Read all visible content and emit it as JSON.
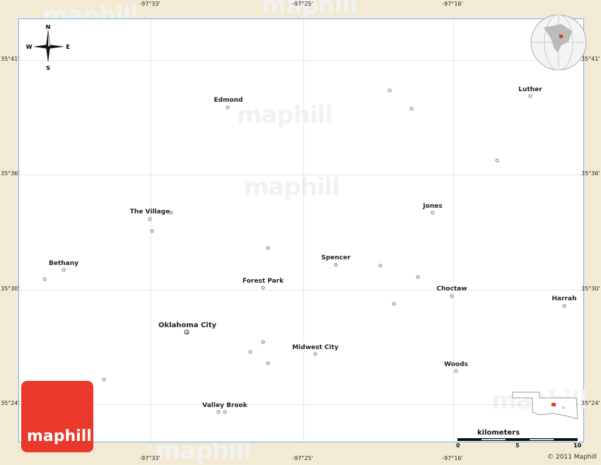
{
  "watermark": "maphill",
  "coordinates": {
    "longitudes": [
      "-97°33'",
      "-97°25'",
      "-97°16'"
    ],
    "latitudes": [
      "35°41'",
      "35°36'",
      "35°30'",
      "35°24'"
    ]
  },
  "compass": {
    "n": "N",
    "s": "S",
    "e": "E",
    "w": "W"
  },
  "cities": [
    {
      "name": "Edmond"
    },
    {
      "name": "Luther"
    },
    {
      "name": "The Village"
    },
    {
      "name": "Jones"
    },
    {
      "name": "Bethany"
    },
    {
      "name": "Spencer"
    },
    {
      "name": "Forest Park"
    },
    {
      "name": "Choctaw"
    },
    {
      "name": "Harrah"
    },
    {
      "name": "Oklahoma City",
      "capital": true
    },
    {
      "name": "Midwest City"
    },
    {
      "name": "Woods"
    },
    {
      "name": "Valley Brook"
    }
  ],
  "scale": {
    "unit": "kilometers",
    "ticks": [
      "0",
      "5",
      "10"
    ]
  },
  "logo": "maphill",
  "copyright": "© 2011 Maphill",
  "colors": {
    "background": "#f3ead3",
    "border": "#6fb3ee",
    "logo": "#e8392b",
    "locator": "#e8392b"
  }
}
